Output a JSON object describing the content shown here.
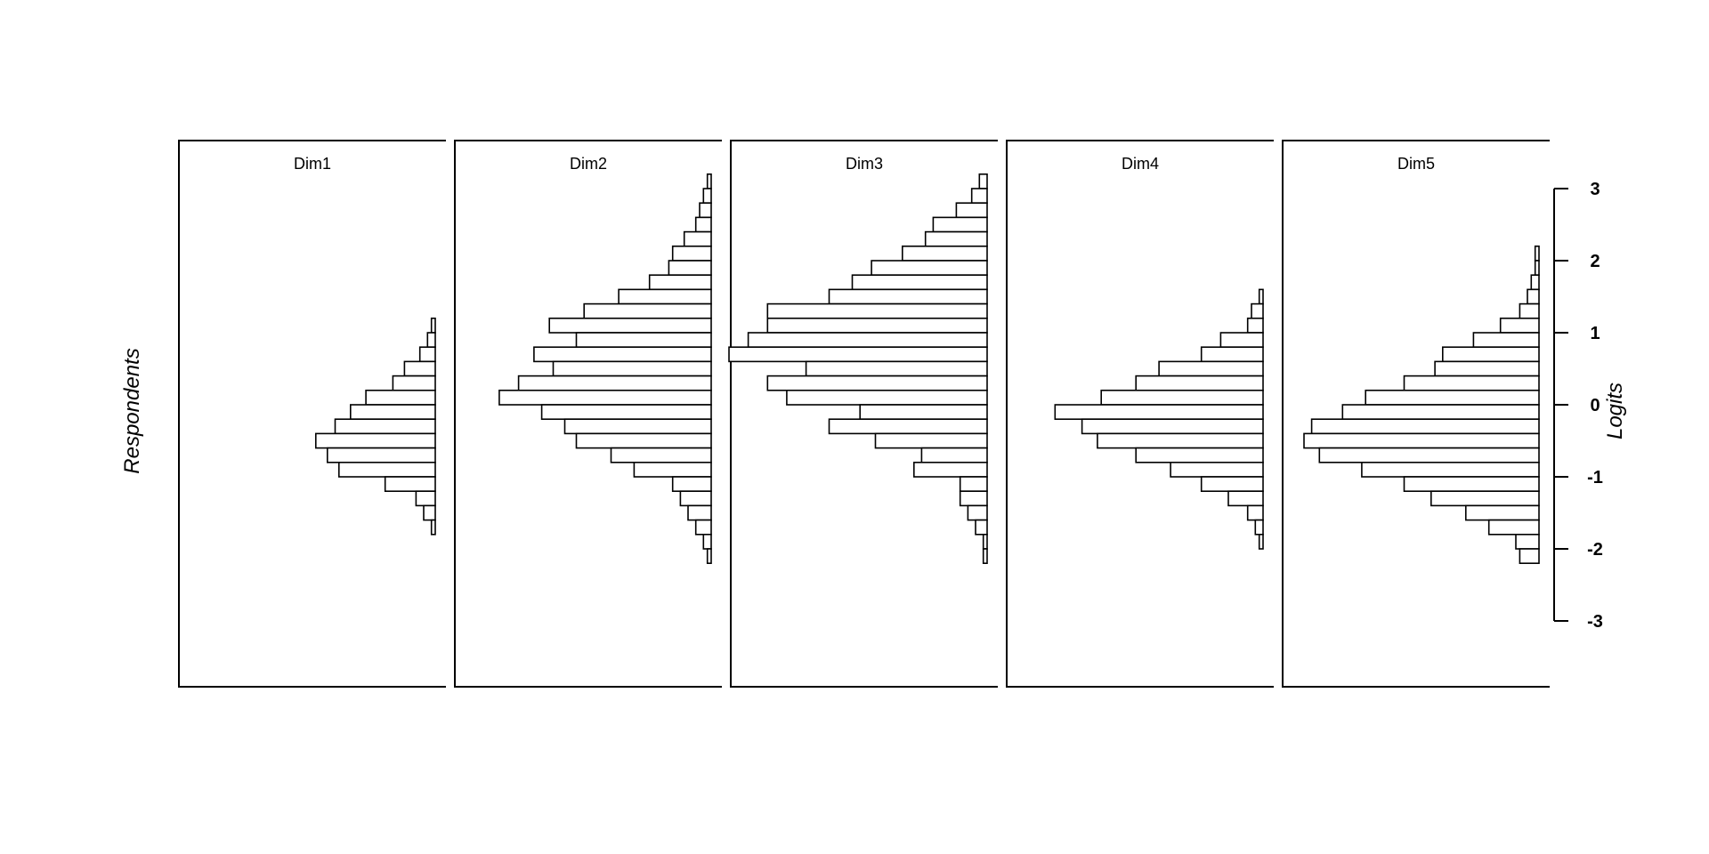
{
  "chart_data": {
    "type": "bar",
    "orientation": "horizontal",
    "ylabel_left": "Respondents",
    "ylabel_right": "Logits",
    "ylim": [
      -3,
      3
    ],
    "y_ticks": [
      "-3",
      "-2",
      "-1",
      "0",
      "1",
      "2",
      "3"
    ],
    "bin_width": 0.2,
    "bin_centers": [
      3.1,
      2.9,
      2.7,
      2.5,
      2.3,
      2.1,
      1.9,
      1.7,
      1.5,
      1.3,
      1.1,
      0.9,
      0.7,
      0.5,
      0.3,
      0.1,
      -0.1,
      -0.3,
      -0.5,
      -0.7,
      -0.9,
      -1.1,
      -1.3,
      -1.5,
      -1.7,
      -1.9,
      -2.1,
      -2.3,
      -2.5,
      -2.7,
      -2.9,
      -3.1,
      -3.3,
      -3.5
    ],
    "panels": [
      {
        "name": "Dim1",
        "values": [
          0,
          0,
          0,
          0,
          0,
          0,
          0,
          0,
          0,
          0,
          1,
          2,
          4,
          8,
          11,
          18,
          22,
          26,
          31,
          28,
          25,
          13,
          5,
          3,
          1,
          0,
          0,
          0,
          0,
          0,
          0,
          0,
          0,
          0
        ]
      },
      {
        "name": "Dim2",
        "values": [
          1,
          2,
          3,
          4,
          7,
          10,
          11,
          16,
          24,
          33,
          42,
          35,
          46,
          41,
          50,
          55,
          44,
          38,
          35,
          26,
          20,
          10,
          8,
          6,
          4,
          2,
          1,
          0,
          0,
          0,
          0,
          0,
          0,
          0
        ]
      },
      {
        "name": "Dim3",
        "values": [
          2,
          4,
          8,
          14,
          16,
          22,
          30,
          35,
          41,
          57,
          57,
          62,
          67,
          47,
          57,
          52,
          33,
          41,
          29,
          17,
          19,
          7,
          7,
          5,
          3,
          1,
          1,
          0,
          0,
          0,
          0,
          0,
          0,
          0
        ]
      },
      {
        "name": "Dim4",
        "values": [
          0,
          0,
          0,
          0,
          0,
          0,
          0,
          0,
          1,
          3,
          4,
          11,
          16,
          27,
          33,
          42,
          54,
          47,
          43,
          33,
          24,
          16,
          9,
          4,
          2,
          1,
          0,
          0,
          0,
          0,
          0,
          0,
          0,
          0
        ]
      },
      {
        "name": "Dim5",
        "values": [
          0,
          0,
          0,
          0,
          0,
          1,
          1,
          2,
          3,
          5,
          10,
          17,
          25,
          27,
          35,
          45,
          51,
          59,
          61,
          57,
          46,
          35,
          28,
          19,
          13,
          6,
          5,
          0,
          0,
          0,
          0,
          0,
          0,
          0
        ]
      }
    ]
  }
}
